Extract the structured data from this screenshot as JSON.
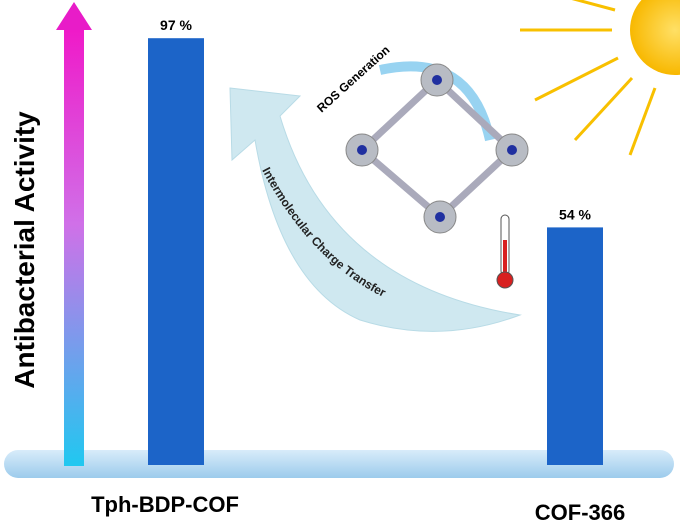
{
  "chart_data": {
    "type": "bar",
    "y_label": "Antibacterial Activity",
    "categories": [
      "Tph-BDP-COF",
      "COF-366"
    ],
    "values": [
      97,
      54
    ],
    "value_labels": [
      "97 %",
      "54 %"
    ],
    "color": "#1c64c8",
    "ylim": [
      0,
      100
    ],
    "annotations": [
      "ROS Generation",
      "Intermolecular Charge Transfer"
    ]
  }
}
